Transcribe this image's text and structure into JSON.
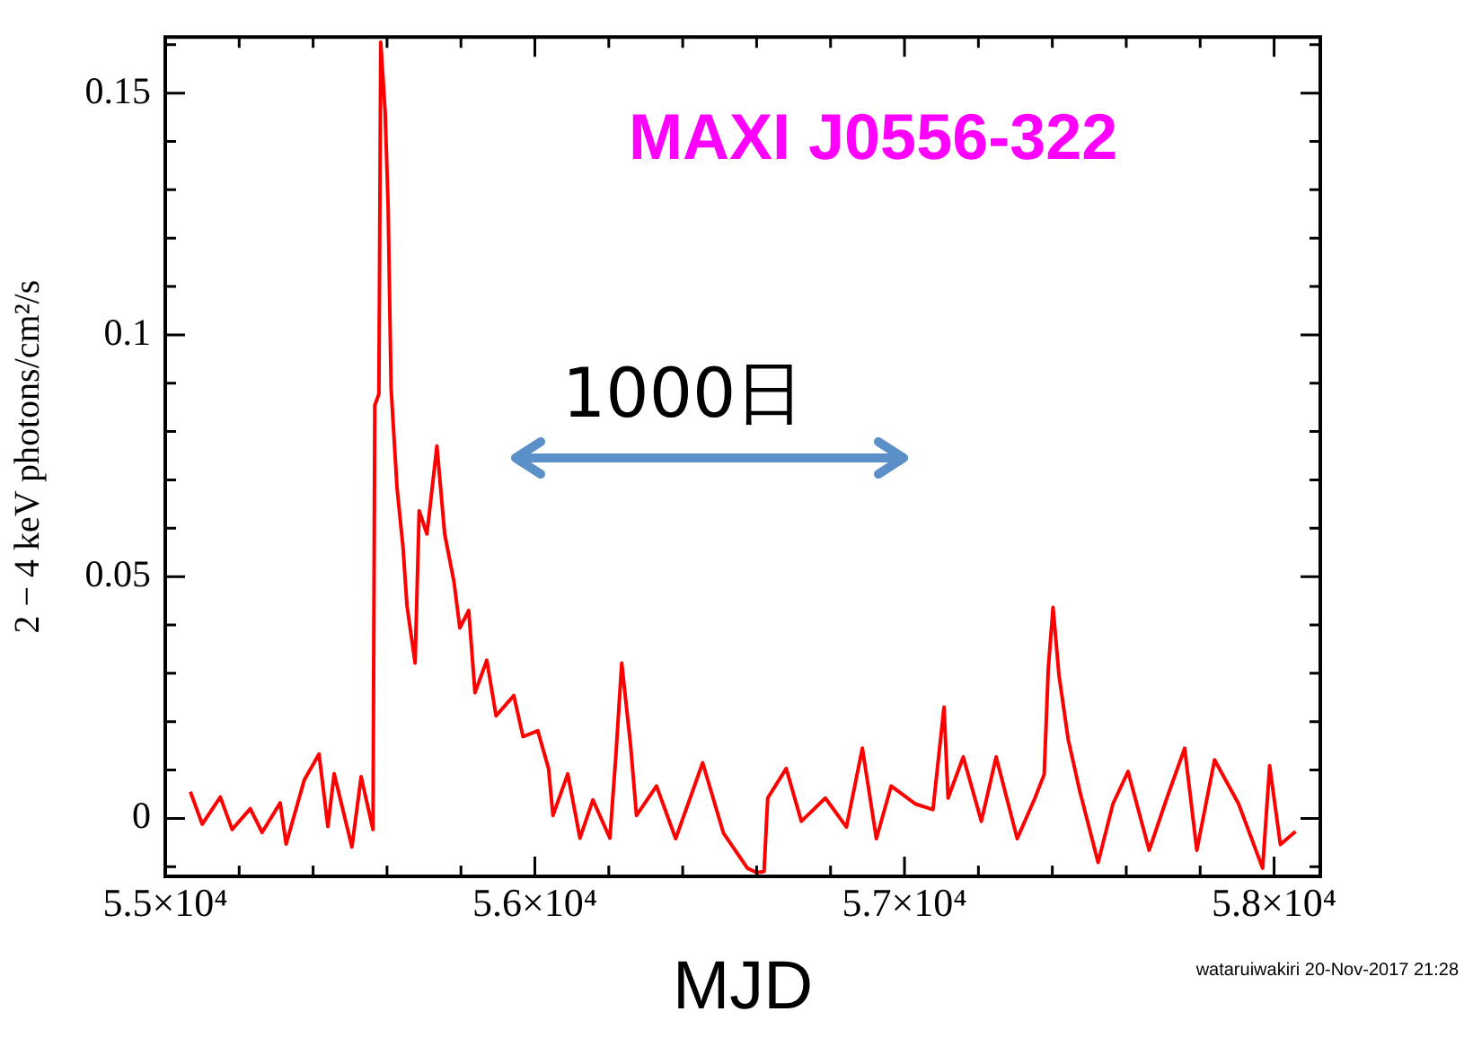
{
  "chart_data": {
    "type": "line",
    "title": "MAXI J0556-322",
    "xlabel": "MJD",
    "ylabel": "2 − 4 keV photons/cm²/s",
    "annotations": [
      "1000日",
      "wataruiwakiri 20-Nov-2017 21:28"
    ],
    "x": [
      55068,
      55100,
      55149,
      55181,
      55230,
      55262,
      55311,
      55327,
      55376,
      55416,
      55440,
      55457,
      55505,
      55530,
      55562,
      55567,
      55578,
      55583,
      55595,
      55603,
      55611,
      55627,
      55643,
      55654,
      55676,
      55687,
      55708,
      55735,
      55756,
      55781,
      55797,
      55821,
      55838,
      55870,
      55895,
      55943,
      55968,
      56008,
      56037,
      56049,
      56089,
      56122,
      56157,
      56203,
      56219,
      56235,
      56259,
      56275,
      56329,
      56381,
      56454,
      56510,
      56575,
      56600,
      56620,
      56630,
      56680,
      56721,
      56786,
      56843,
      56886,
      56924,
      56964,
      57029,
      57077,
      57107,
      57118,
      57159,
      57208,
      57248,
      57305,
      57353,
      57378,
      57389,
      57402,
      57418,
      57443,
      57475,
      57524,
      57564,
      57605,
      57662,
      57710,
      57758,
      57791,
      57839,
      57904,
      57969,
      57988,
      58017,
      58058
    ],
    "series": [
      {
        "color": "#ff0000",
        "values": [
          0.0055,
          -0.0012,
          0.0044,
          -0.0023,
          0.002,
          -0.0029,
          0.0032,
          -0.0053,
          0.0079,
          0.0133,
          -0.0017,
          0.0092,
          -0.0059,
          0.0086,
          -0.0023,
          0.0854,
          0.0878,
          0.1605,
          0.146,
          0.1265,
          0.089,
          0.0684,
          0.0563,
          0.044,
          0.0321,
          0.0636,
          0.0588,
          0.077,
          0.0588,
          0.049,
          0.0394,
          0.043,
          0.026,
          0.0327,
          0.0212,
          0.0254,
          0.0169,
          0.0181,
          0.0103,
          0.0006,
          0.0092,
          -0.0041,
          0.0038,
          -0.0041,
          0.0128,
          0.0321,
          0.0151,
          0.0006,
          0.0067,
          -0.0042,
          0.0115,
          -0.003,
          -0.0103,
          -0.0112,
          -0.011,
          0.0042,
          0.0103,
          -0.0006,
          0.0042,
          -0.0018,
          0.0145,
          -0.0042,
          0.0067,
          0.003,
          0.0018,
          0.023,
          0.0042,
          0.0127,
          -0.0006,
          0.0127,
          -0.0042,
          0.0042,
          0.0091,
          0.0309,
          0.0436,
          0.0296,
          0.0163,
          0.0054,
          -0.0091,
          0.003,
          0.0097,
          -0.0066,
          0.0042,
          0.0145,
          -0.0066,
          0.0121,
          0.003,
          -0.0103,
          0.0109,
          -0.0054,
          -0.0027
        ]
      }
    ],
    "xlim": [
      55000,
      58125
    ],
    "xticks": [
      {
        "value": 55000,
        "label": "5.5×10⁴"
      },
      {
        "value": 55200,
        "label": null
      },
      {
        "value": 55400,
        "label": null
      },
      {
        "value": 55600,
        "label": null
      },
      {
        "value": 55800,
        "label": null
      },
      {
        "value": 56000,
        "label": "5.6×10⁴"
      },
      {
        "value": 56200,
        "label": null
      },
      {
        "value": 56400,
        "label": null
      },
      {
        "value": 56600,
        "label": null
      },
      {
        "value": 56800,
        "label": null
      },
      {
        "value": 57000,
        "label": "5.7×10⁴"
      },
      {
        "value": 57200,
        "label": null
      },
      {
        "value": 57400,
        "label": null
      },
      {
        "value": 57600,
        "label": null
      },
      {
        "value": 57800,
        "label": null
      },
      {
        "value": 58000,
        "label": "5.8×10⁴"
      }
    ],
    "ylim": [
      -0.012,
      0.1616
    ],
    "yticks": [
      {
        "value": -0.01,
        "label": null
      },
      0,
      {
        "value": 0.01,
        "label": null
      },
      {
        "value": 0.02,
        "label": null
      },
      {
        "value": 0.03,
        "label": null
      },
      {
        "value": 0.04,
        "label": null
      },
      0.05,
      {
        "value": 0.06,
        "label": null
      },
      {
        "value": 0.07,
        "label": null
      },
      {
        "value": 0.08,
        "label": null
      },
      {
        "value": 0.09,
        "label": null
      },
      0.1,
      {
        "value": 0.11,
        "label": null
      },
      {
        "value": 0.12,
        "label": null
      },
      {
        "value": 0.13,
        "label": null
      },
      {
        "value": 0.14,
        "label": null
      },
      0.15,
      {
        "value": 0.16,
        "label": null
      }
    ],
    "grid": false,
    "legend": false,
    "marker": "none",
    "line_style": "solid"
  }
}
